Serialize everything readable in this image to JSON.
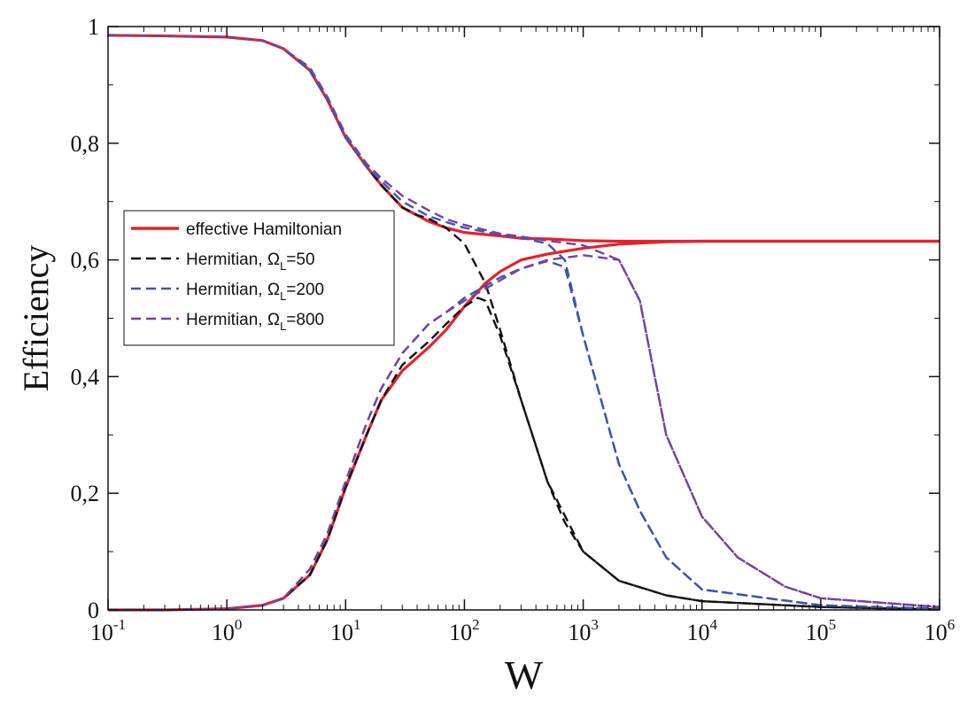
{
  "chart_data": {
    "type": "line",
    "xlabel": "W",
    "ylabel": "Efficiency",
    "x_scale": "log",
    "xlim": [
      0.1,
      1000000
    ],
    "ylim": [
      0,
      1
    ],
    "x_ticks": [
      {
        "base": "10",
        "exp": "-1",
        "value": 0.1
      },
      {
        "base": "10",
        "exp": "0",
        "value": 1
      },
      {
        "base": "10",
        "exp": "1",
        "value": 10
      },
      {
        "base": "10",
        "exp": "2",
        "value": 100
      },
      {
        "base": "10",
        "exp": "3",
        "value": 1000
      },
      {
        "base": "10",
        "exp": "4",
        "value": 10000
      },
      {
        "base": "10",
        "exp": "5",
        "value": 100000
      },
      {
        "base": "10",
        "exp": "6",
        "value": 1000000
      }
    ],
    "y_ticks": [
      {
        "label": "0",
        "value": 0
      },
      {
        "label": "0,2",
        "value": 0.2
      },
      {
        "label": "0,4",
        "value": 0.4
      },
      {
        "label": "0,6",
        "value": 0.6
      },
      {
        "label": "0,8",
        "value": 0.8
      },
      {
        "label": "1",
        "value": 1
      }
    ],
    "grid": false,
    "legend_position": "middle-left",
    "legend": [
      {
        "text": "effective Hamiltonian",
        "pre": "",
        "sub": "",
        "post": "",
        "color": "#e8202a",
        "dash": "solid"
      },
      {
        "text": "",
        "pre": "Hermitian, Ω",
        "sub": "L",
        "post": "=50",
        "color": "#111111",
        "dash": "dashed"
      },
      {
        "text": "",
        "pre": "Hermitian, Ω",
        "sub": "L",
        "post": "=200",
        "color": "#3a55b0",
        "dash": "dashed"
      },
      {
        "text": "",
        "pre": "Hermitian, Ω",
        "sub": "L",
        "post": "=800",
        "color": "#7a3fa0",
        "dash": "dashed"
      }
    ],
    "series": [
      {
        "name": "effective Hamiltonian",
        "color": "#e8202a",
        "dash": "solid",
        "x": [
          0.1,
          0.3,
          1,
          2,
          3,
          5,
          7,
          10,
          15,
          20,
          30,
          50,
          70,
          100,
          200,
          300,
          500,
          1000,
          2000,
          5000,
          10000,
          100000,
          1000000
        ],
        "y": [
          0.985,
          0.984,
          0.982,
          0.976,
          0.962,
          0.925,
          0.875,
          0.81,
          0.76,
          0.728,
          0.69,
          0.666,
          0.655,
          0.647,
          0.641,
          0.637,
          0.636,
          0.633,
          0.632,
          0.632,
          0.632,
          0.632,
          0.632
        ]
      },
      {
        "name": "effective Hamiltonian",
        "color": "#e8202a",
        "dash": "solid",
        "x": [
          0.1,
          0.3,
          1,
          2,
          3,
          5,
          7,
          10,
          15,
          20,
          30,
          50,
          70,
          100,
          150,
          200,
          300,
          500,
          1000,
          2000,
          5000,
          10000,
          100000,
          1000000
        ],
        "y": [
          0.0,
          0.0,
          0.002,
          0.008,
          0.02,
          0.06,
          0.12,
          0.21,
          0.3,
          0.36,
          0.41,
          0.45,
          0.48,
          0.52,
          0.56,
          0.58,
          0.6,
          0.61,
          0.62,
          0.627,
          0.631,
          0.632,
          0.632,
          0.632
        ]
      },
      {
        "name": "Hermitian, Ω_L=50",
        "color": "#111111",
        "dash": "dashed",
        "x": [
          0.1,
          0.3,
          1,
          2,
          3,
          5,
          7,
          10,
          15,
          20,
          30,
          50,
          70,
          100,
          130,
          150,
          200,
          300,
          500,
          700,
          1000,
          2000,
          5000,
          10000,
          100000,
          1000000
        ],
        "y": [
          0.0,
          0.0,
          0.002,
          0.008,
          0.02,
          0.06,
          0.12,
          0.21,
          0.3,
          0.36,
          0.42,
          0.46,
          0.49,
          0.52,
          0.535,
          0.53,
          0.47,
          0.36,
          0.22,
          0.15,
          0.1,
          0.05,
          0.025,
          0.015,
          0.005,
          0.001
        ]
      },
      {
        "name": "Hermitian, Ω_L=50",
        "color": "#111111",
        "dash": "dashed",
        "x": [
          0.1,
          0.3,
          1,
          2,
          3,
          5,
          7,
          10,
          15,
          20,
          30,
          40,
          50,
          70,
          100,
          150,
          200,
          300,
          500,
          1000,
          2000,
          5000,
          10000,
          100000,
          1000000
        ],
        "y": [
          0.985,
          0.984,
          0.982,
          0.976,
          0.962,
          0.925,
          0.875,
          0.81,
          0.76,
          0.728,
          0.69,
          0.677,
          0.671,
          0.655,
          0.628,
          0.56,
          0.48,
          0.36,
          0.22,
          0.1,
          0.05,
          0.025,
          0.015,
          0.005,
          0.001
        ]
      },
      {
        "name": "Hermitian, Ω_L=200",
        "color": "#3a55b0",
        "dash": "dashed",
        "x": [
          0.1,
          0.3,
          1,
          2,
          3,
          5,
          7,
          10,
          15,
          20,
          30,
          50,
          70,
          100,
          200,
          300,
          500,
          700,
          1000,
          2000,
          3000,
          5000,
          10000,
          100000,
          1000000
        ],
        "y": [
          0.0,
          0.0,
          0.002,
          0.008,
          0.02,
          0.07,
          0.13,
          0.22,
          0.32,
          0.38,
          0.44,
          0.49,
          0.51,
          0.535,
          0.57,
          0.585,
          0.598,
          0.588,
          0.47,
          0.25,
          0.17,
          0.09,
          0.035,
          0.008,
          0.002
        ]
      },
      {
        "name": "Hermitian, Ω_L=200",
        "color": "#3a55b0",
        "dash": "dashed",
        "x": [
          0.1,
          0.3,
          1,
          2,
          3,
          5,
          7,
          10,
          15,
          20,
          30,
          50,
          70,
          100,
          200,
          300,
          500,
          700,
          1000,
          2000,
          3000,
          5000,
          10000,
          100000,
          1000000
        ],
        "y": [
          0.985,
          0.984,
          0.982,
          0.976,
          0.962,
          0.925,
          0.875,
          0.81,
          0.76,
          0.735,
          0.7,
          0.675,
          0.665,
          0.655,
          0.643,
          0.638,
          0.628,
          0.6,
          0.47,
          0.25,
          0.17,
          0.09,
          0.035,
          0.008,
          0.002
        ]
      },
      {
        "name": "Hermitian, Ω_L=800",
        "color": "#7a3fa0",
        "dash": "dashed",
        "x": [
          0.1,
          0.3,
          1,
          2,
          3,
          5,
          7,
          10,
          15,
          20,
          30,
          50,
          70,
          100,
          200,
          300,
          500,
          1000,
          2000,
          3000,
          5000,
          10000,
          20000,
          50000,
          100000,
          1000000
        ],
        "y": [
          0.0,
          0.0,
          0.002,
          0.008,
          0.02,
          0.07,
          0.13,
          0.22,
          0.32,
          0.38,
          0.44,
          0.49,
          0.51,
          0.53,
          0.565,
          0.585,
          0.6,
          0.608,
          0.6,
          0.53,
          0.3,
          0.16,
          0.09,
          0.04,
          0.02,
          0.005
        ]
      },
      {
        "name": "Hermitian, Ω_L=800",
        "color": "#7a3fa0",
        "dash": "dashed",
        "x": [
          0.1,
          0.3,
          1,
          2,
          3,
          5,
          7,
          10,
          15,
          20,
          30,
          50,
          70,
          100,
          200,
          300,
          500,
          1000,
          2000,
          3000,
          5000,
          10000,
          20000,
          50000,
          100000,
          1000000
        ],
        "y": [
          0.985,
          0.984,
          0.982,
          0.976,
          0.962,
          0.93,
          0.88,
          0.815,
          0.765,
          0.74,
          0.71,
          0.685,
          0.67,
          0.66,
          0.645,
          0.64,
          0.633,
          0.625,
          0.6,
          0.53,
          0.3,
          0.16,
          0.09,
          0.04,
          0.02,
          0.005
        ]
      }
    ]
  }
}
